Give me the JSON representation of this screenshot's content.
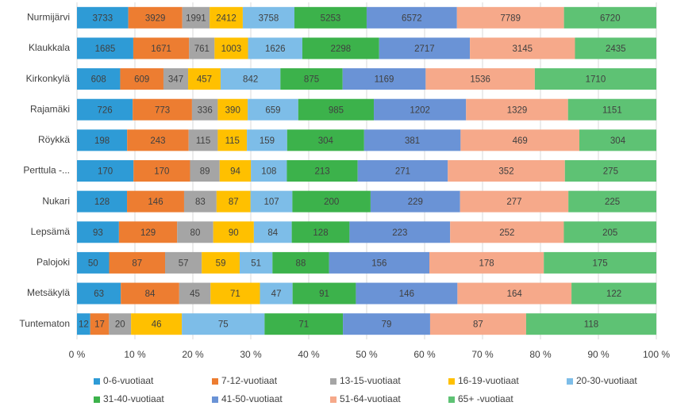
{
  "chart_data": {
    "type": "bar100h",
    "categories": [
      "Nurmijärvi",
      "Klaukkala",
      "Kirkonkylä",
      "Rajamäki",
      "Röykkä",
      "Perttula -...",
      "Nukari",
      "Lepsämä",
      "Palojoki",
      "Metsäkylä",
      "Tuntematon"
    ],
    "series": [
      {
        "name": "0-6-vuotiaat",
        "color": "#2e9bd6",
        "values": [
          3733,
          1685,
          608,
          726,
          198,
          170,
          128,
          93,
          50,
          63,
          12
        ]
      },
      {
        "name": "7-12-vuotiaat",
        "color": "#ed7d31",
        "values": [
          3929,
          1671,
          609,
          773,
          243,
          170,
          146,
          129,
          87,
          84,
          17
        ]
      },
      {
        "name": "13-15-vuotiaat",
        "color": "#a5a5a5",
        "values": [
          1991,
          761,
          347,
          336,
          115,
          89,
          83,
          80,
          57,
          45,
          20
        ]
      },
      {
        "name": "16-19-vuotiaat",
        "color": "#ffc000",
        "values": [
          2412,
          1003,
          457,
          390,
          115,
          94,
          87,
          90,
          59,
          71,
          46
        ]
      },
      {
        "name": "20-30-vuotiaat",
        "color": "#7dbde8",
        "values": [
          3758,
          1626,
          842,
          659,
          159,
          108,
          107,
          84,
          51,
          47,
          75
        ]
      },
      {
        "name": "31-40-vuotiaat",
        "color": "#3cb24b",
        "values": [
          5253,
          2298,
          875,
          985,
          304,
          213,
          200,
          128,
          88,
          91,
          71
        ]
      },
      {
        "name": "41-50-vuotiaat",
        "color": "#6a93d6",
        "values": [
          6572,
          2717,
          1169,
          1202,
          381,
          271,
          229,
          223,
          156,
          146,
          79
        ]
      },
      {
        "name": "51-64-vuotiaat",
        "color": "#f6a98a",
        "values": [
          7789,
          3145,
          1536,
          1329,
          469,
          352,
          277,
          252,
          178,
          164,
          87
        ]
      },
      {
        "name": "65+ -vuotiaat",
        "color": "#5ec274",
        "values": [
          6720,
          2435,
          1710,
          1151,
          304,
          275,
          225,
          205,
          175,
          122,
          118
        ]
      }
    ],
    "xlim": [
      0,
      100
    ],
    "xticks": [
      {
        "value": 0,
        "label": "0 %"
      },
      {
        "value": 10,
        "label": "10 %"
      },
      {
        "value": 20,
        "label": "20 %"
      },
      {
        "value": 30,
        "label": "30 %"
      },
      {
        "value": 40,
        "label": "40 %"
      },
      {
        "value": 50,
        "label": "50 %"
      },
      {
        "value": 60,
        "label": "60 %"
      },
      {
        "value": 70,
        "label": "70 %"
      },
      {
        "value": 80,
        "label": "80 %"
      },
      {
        "value": 90,
        "label": "90 %"
      },
      {
        "value": 100,
        "label": "100 %"
      }
    ],
    "grid": true,
    "legend": "bottom"
  }
}
